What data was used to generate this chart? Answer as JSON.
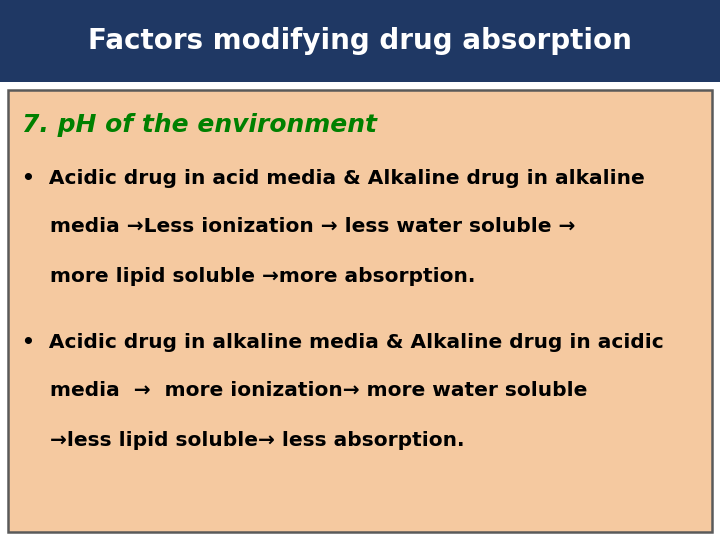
{
  "title": "Factors modifying drug absorption",
  "title_bg": "#1f3864",
  "title_color": "#ffffff",
  "title_fontsize": 20,
  "content_bg": "#f5c9a0",
  "content_border": "#5a5a5a",
  "subtitle": "7. pH of the environment",
  "subtitle_color": "#008000",
  "subtitle_fontsize": 18,
  "bullet1_line1": "•  Acidic drug in acid media & Alkaline drug in alkaline",
  "bullet1_line2": "    media →Less ionization → less water soluble →",
  "bullet1_line3": "    more lipid soluble →more absorption.",
  "bullet2_line1": "•  Acidic drug in alkaline media & Alkaline drug in acidic",
  "bullet2_line2": "    media  →  more ionization→ more water soluble",
  "bullet2_line3": "    →less lipid soluble→ less absorption.",
  "text_color": "#000000",
  "text_fontsize": 14.5,
  "bg_color": "#ffffff"
}
